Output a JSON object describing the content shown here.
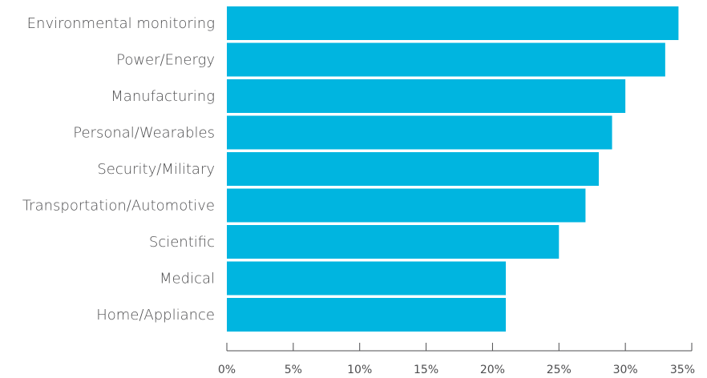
{
  "chart_data": {
    "type": "bar",
    "orientation": "horizontal",
    "categories": [
      "Environmental monitoring",
      "Power/Energy",
      "Manufacturing",
      "Personal/Wearables",
      "Security/Military",
      "Transportation/Automotive",
      "Scientific",
      "Medical",
      "Home/Appliance"
    ],
    "values": [
      34,
      33,
      30,
      29,
      28,
      27,
      25,
      21,
      21
    ],
    "value_unit": "%",
    "xlim": [
      0,
      35
    ],
    "xticks": [
      "0%",
      "5%",
      "10%",
      "15%",
      "20%",
      "25%",
      "30%",
      "35%"
    ],
    "bar_color": "#00b5e0",
    "grid": false,
    "title": "",
    "xlabel": "",
    "ylabel": ""
  }
}
